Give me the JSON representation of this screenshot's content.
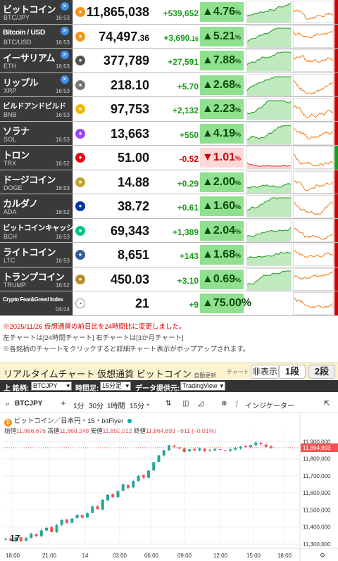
{
  "quotes": [
    {
      "name": "ビットコイン",
      "sym": "BTC/JPY",
      "time": "16:53",
      "x": true,
      "coin_color": "#f7931a",
      "price": "11,865,038",
      "price_small": "",
      "chg": "+539,652",
      "chg_small": "",
      "pct": "4.76",
      "dir": "up"
    },
    {
      "name": "Bitcoin / USD",
      "sym": "BTC/USD",
      "time": "16:53",
      "x": true,
      "coin_color": "#f7931a",
      "price": "74,497",
      "price_small": ".36",
      "chg": "+3,690",
      "chg_small": ".16",
      "pct": "5.21",
      "dir": "up"
    },
    {
      "name": "イーサリアム",
      "sym": "ETH",
      "time": "16:53",
      "x": true,
      "coin_color": "#555555",
      "price": "377,789",
      "price_small": "",
      "chg": "+27,591",
      "chg_small": "",
      "pct": "7.88",
      "dir": "up"
    },
    {
      "name": "リップル",
      "sym": "XRP",
      "time": "16:53",
      "x": true,
      "coin_color": "#777777",
      "price": "218.10",
      "price_small": "",
      "chg": "+5.70",
      "chg_small": "",
      "pct": "2.68",
      "dir": "up"
    },
    {
      "name": "ビルドアンドビルド",
      "sym": "BNB",
      "time": "16:53",
      "x": false,
      "coin_color": "#f0b90b",
      "price": "97,753",
      "price_small": "",
      "chg": "+2,132",
      "chg_small": "",
      "pct": "2.23",
      "dir": "up"
    },
    {
      "name": "ソラナ",
      "sym": "SOL",
      "time": "16:53",
      "x": false,
      "coin_color": "#9945ff",
      "price": "13,663",
      "price_small": "",
      "chg": "+550",
      "chg_small": "",
      "pct": "4.19",
      "dir": "up"
    },
    {
      "name": "トロン",
      "sym": "TRX",
      "time": "16:52",
      "x": false,
      "coin_color": "#e50914",
      "price": "51.00",
      "price_small": "",
      "chg": "-0.52",
      "chg_small": "",
      "pct": "1.01",
      "dir": "dn"
    },
    {
      "name": "ドージコイン",
      "sym": "DOGE",
      "time": "16:53",
      "x": false,
      "coin_color": "#c2a633",
      "price": "14.88",
      "price_small": "",
      "chg": "+0.29",
      "chg_small": "",
      "pct": "2.00",
      "dir": "up"
    },
    {
      "name": "カルダノ",
      "sym": "ADA",
      "time": "16:52",
      "x": false,
      "coin_color": "#0033ad",
      "price": "38.72",
      "price_small": "",
      "chg": "+0.61",
      "chg_small": "",
      "pct": "1.60",
      "dir": "up"
    },
    {
      "name": "ビットコインキャッシュ",
      "sym": "BCH",
      "time": "16:53",
      "x": false,
      "coin_color": "#0ac18e",
      "price": "69,343",
      "price_small": "",
      "chg": "+1,389",
      "chg_small": "",
      "pct": "2.04",
      "dir": "up"
    },
    {
      "name": "ライトコイン",
      "sym": "LTC",
      "time": "16:53",
      "x": false,
      "coin_color": "#345d9d",
      "price": "8,651",
      "price_small": "",
      "chg": "+143",
      "chg_small": "",
      "pct": "1.68",
      "dir": "up"
    },
    {
      "name": "トランプコイン",
      "sym": "TRUMP",
      "time": "16:52",
      "x": false,
      "coin_color": "#b8902b",
      "price": "450.03",
      "price_small": "",
      "chg": "+3.10",
      "chg_small": "",
      "pct": "0.69",
      "dir": "up"
    }
  ],
  "fear_greed": {
    "label": "Crypto Fear&Greed Index",
    "date": "04/14",
    "value": "21",
    "chg": "+9",
    "pct": "75.00%"
  },
  "notes": {
    "line1": "※2025/11/26 仮想通貨の前日比を24時間比に変更しました。",
    "line2": "左チャートは[24時間チャート] 右チャートは[3か月チャート]",
    "line3": "※各銘柄のチャートをクリックすると詳細チャート表示がポップアップされます。"
  },
  "realtime": {
    "title": "リアルタイムチャート 仮想通貨 ビットコイン",
    "auto_update": "自動更新",
    "chart_label": "チャート",
    "hide": "非表示",
    "one_col": "1段",
    "two_col": "2段",
    "symbol_label": "上 銘柄:",
    "symbol_value": "BTCJPY",
    "interval_label": "時間足:",
    "interval_value": "15分足",
    "provider_label": "データ提供元:",
    "provider_value": "TradingView"
  },
  "tv": {
    "symbol": "BTCJPY",
    "plus": "+",
    "intervals": [
      "1分",
      "30分",
      "1時間",
      "15分"
    ],
    "indicators": "インジケーター",
    "legend": "ビットコイン／日本円・15・bitFlyer",
    "open_label": "始値",
    "open": "11,866,676",
    "high_label": "高値",
    "high": "11,868,248",
    "low_label": "安値",
    "low": "11,859,012",
    "close_label": "終値",
    "close": "11,864,893",
    "change": "−611 (−0.01%)",
    "last_price": "11,864,893",
    "logo": "17"
  },
  "chart_data": {
    "type": "candlestick",
    "title": "ビットコイン／日本円・15・bitFlyer",
    "x_ticks": [
      "18:00",
      "21:00",
      "14",
      "03:00",
      "06:00",
      "09:00",
      "12:00",
      "15:00",
      "18:00"
    ],
    "y_ticks": [
      11900000,
      11800000,
      11700000,
      11600000,
      11500000,
      11400000,
      11300000
    ],
    "y_tick_labels": [
      "11,900,000",
      "11,800,000",
      "11,700,000",
      "11,600,000",
      "11,500,000",
      "11,400,000",
      "11,300,000"
    ],
    "ylim": [
      11275000,
      11935000
    ],
    "close_path": [
      11330000,
      11322000,
      11340000,
      11318000,
      11335000,
      11360000,
      11345000,
      11380000,
      11395000,
      11370000,
      11410000,
      11440000,
      11425000,
      11450000,
      11470000,
      11455000,
      11480000,
      11520000,
      11505000,
      11560000,
      11590000,
      11575000,
      11610000,
      11650000,
      11630000,
      11670000,
      11700000,
      11690000,
      11730000,
      11780000,
      11820000,
      11850000,
      11880000,
      11870000,
      11860000,
      11840000,
      11855000,
      11850000,
      11860000,
      11845000,
      11850000,
      11858000,
      11852000,
      11848000,
      11855000,
      11862000,
      11870000,
      11868000,
      11880000,
      11895000,
      11885000,
      11870000,
      11864893
    ]
  }
}
